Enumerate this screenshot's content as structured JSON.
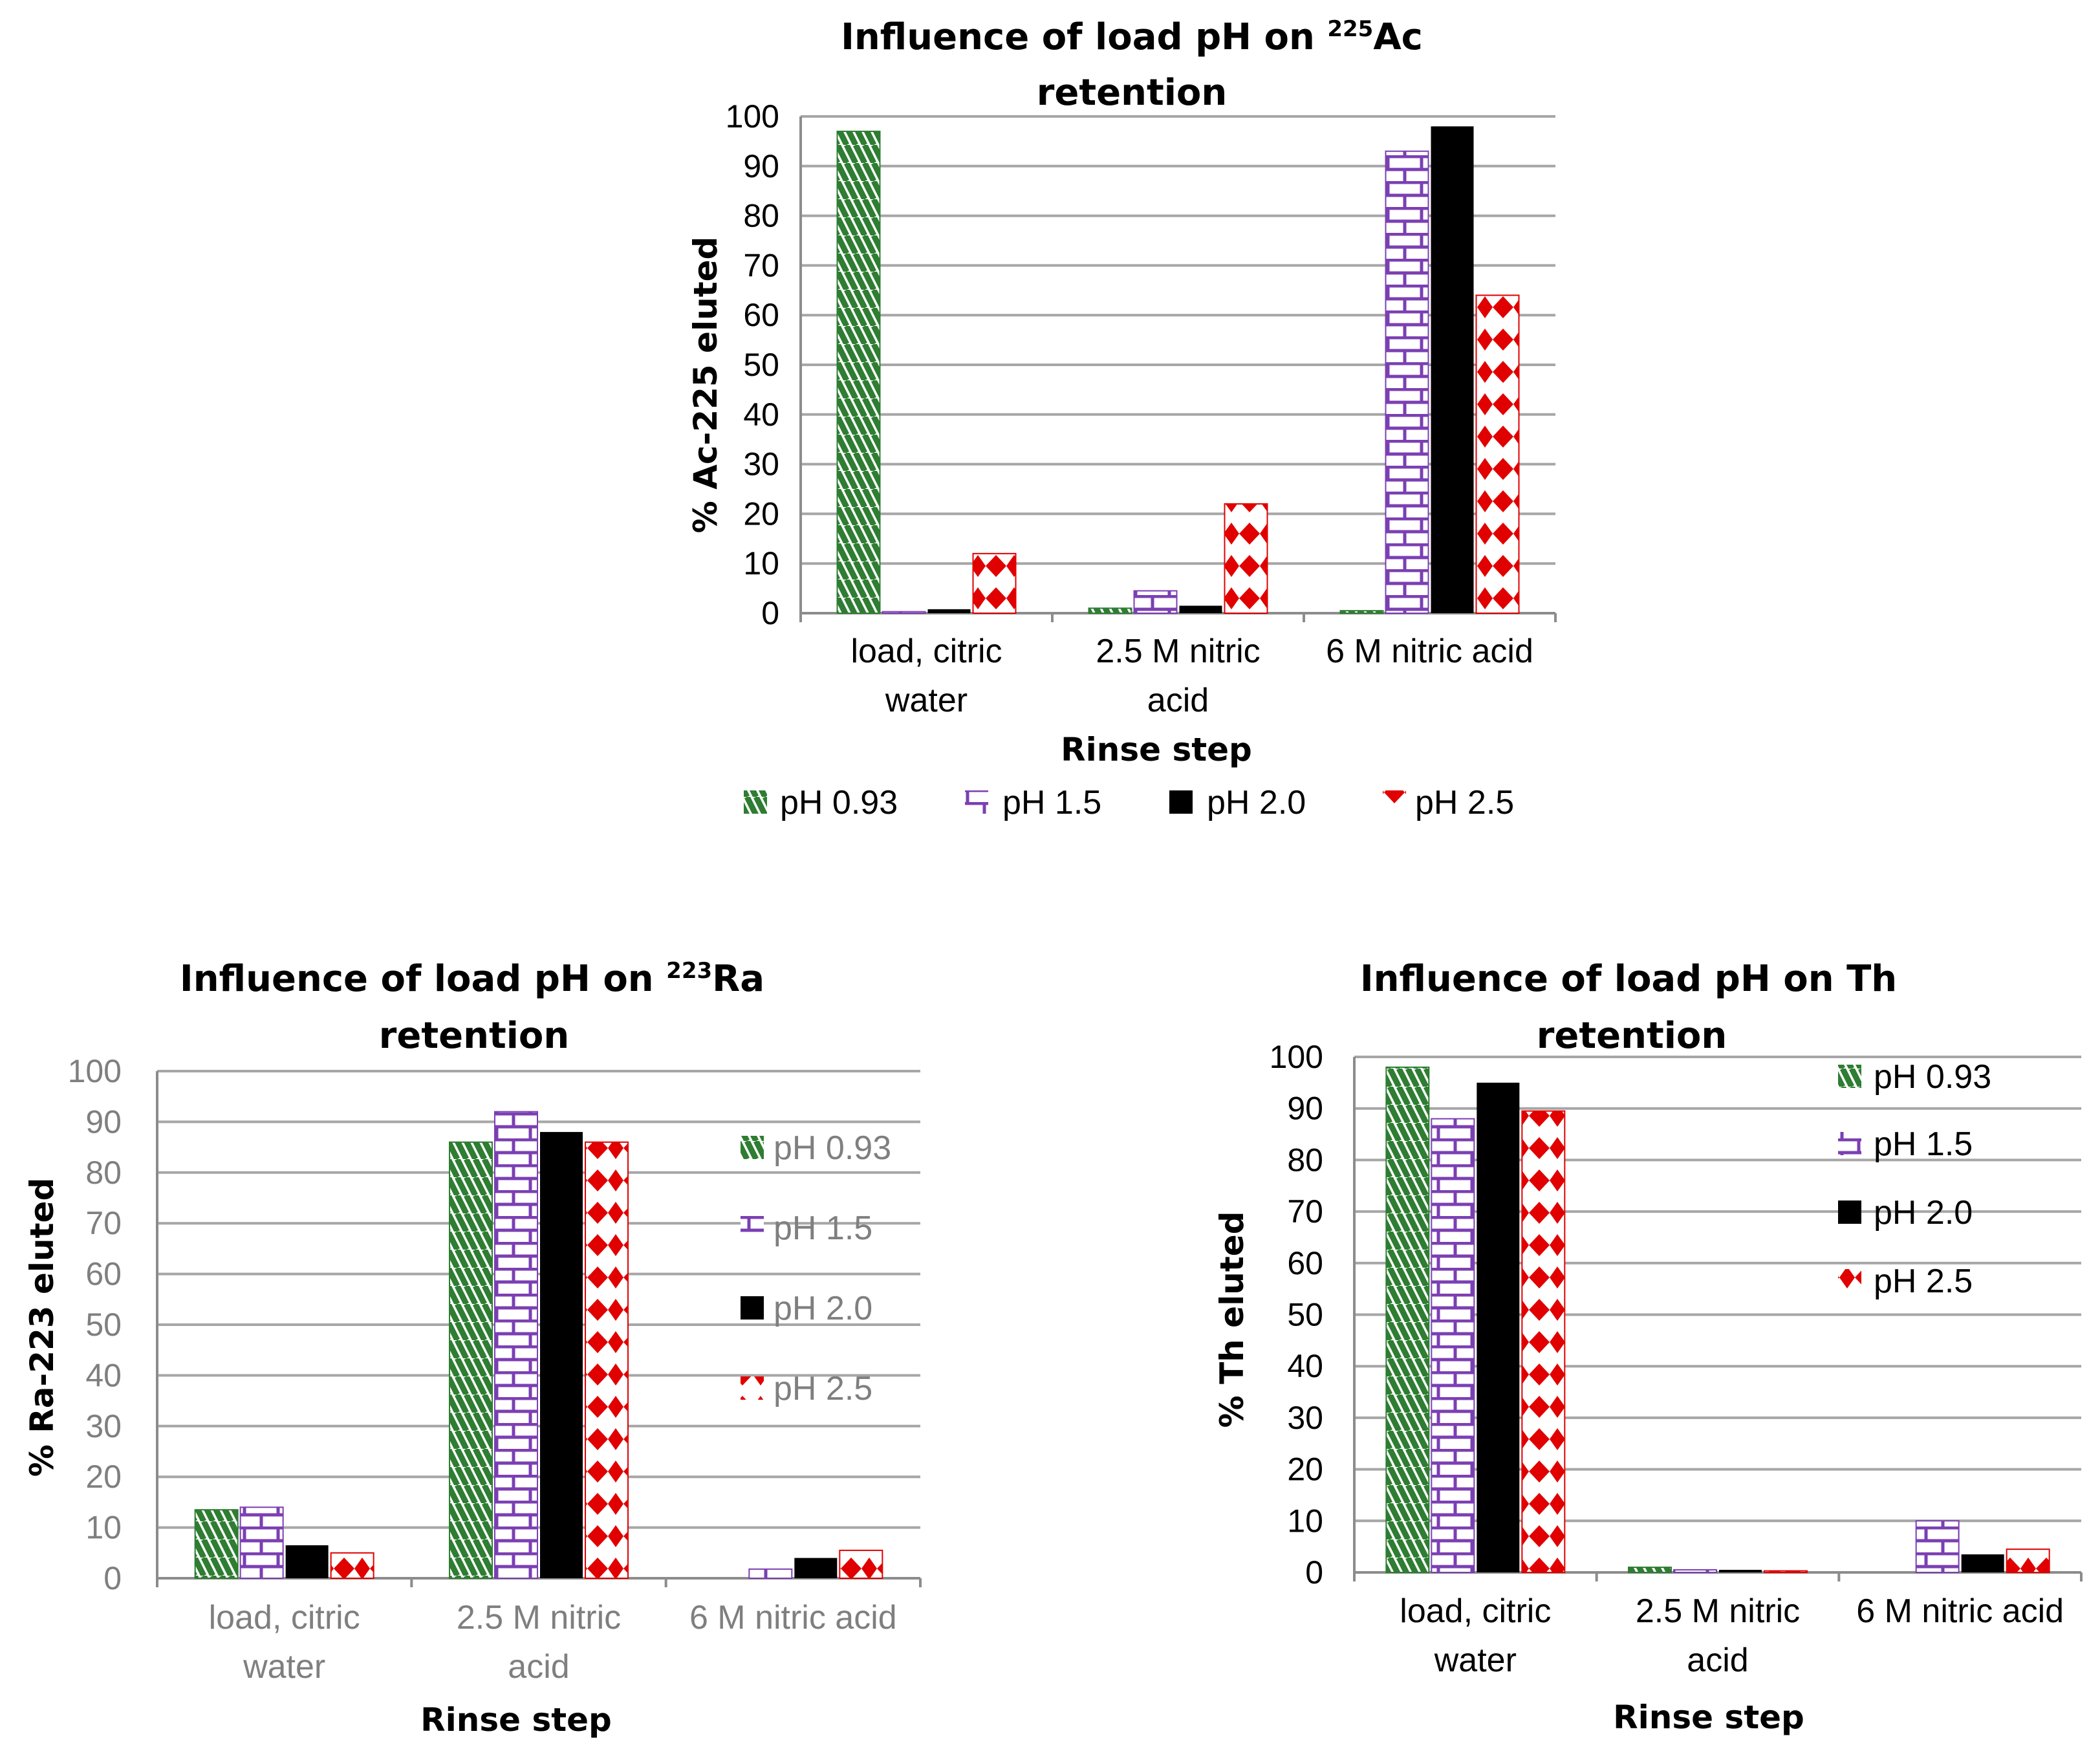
{
  "colors": {
    "ph093": "#2e7d32",
    "ph15": "#7b3fb3",
    "ph20": "#000000",
    "ph25": "#e00000",
    "gray_text": "#7f7f7f",
    "black_text": "#000000",
    "grid": "#a6a6a6"
  },
  "chart_data": [
    {
      "type": "bar",
      "title": "Influence of load pH on ",
      "title_sup": "225",
      "title_elem": "Ac",
      "title_line2": "retention",
      "ylabel": "% Ac-225 eluted",
      "xlabel": "Rinse step",
      "ylim": [
        0,
        100
      ],
      "yticks": [
        0,
        10,
        20,
        30,
        40,
        50,
        60,
        70,
        80,
        90,
        100
      ],
      "categories": [
        [
          "load, citric",
          "water"
        ],
        [
          "2.5 M nitric",
          "acid"
        ],
        [
          "6 M nitric acid"
        ]
      ],
      "legend_position": "bottom",
      "series": [
        {
          "name": "pH 0.93",
          "values": [
            97,
            1,
            0.5
          ]
        },
        {
          "name": "pH 1.5",
          "values": [
            0.3,
            4.5,
            93
          ]
        },
        {
          "name": "pH 2.0",
          "values": [
            0.8,
            1.5,
            98
          ]
        },
        {
          "name": "pH 2.5",
          "values": [
            12,
            22,
            64
          ]
        }
      ]
    },
    {
      "type": "bar",
      "title": "Influence of load pH on ",
      "title_sup": "223",
      "title_elem": "Ra",
      "title_line2": "retention",
      "ylabel": "% Ra-223 eluted",
      "xlabel": "Rinse step",
      "ylim": [
        0,
        100
      ],
      "yticks": [
        0,
        10,
        20,
        30,
        40,
        50,
        60,
        70,
        80,
        90,
        100
      ],
      "categories": [
        [
          "load, citric",
          "water"
        ],
        [
          "2.5 M nitric",
          "acid"
        ],
        [
          "6 M nitric acid"
        ]
      ],
      "legend_position": "right",
      "series": [
        {
          "name": "pH 0.93",
          "values": [
            13.5,
            86,
            0
          ]
        },
        {
          "name": "pH 1.5",
          "values": [
            14,
            92,
            1.8
          ]
        },
        {
          "name": "pH 2.0",
          "values": [
            6.5,
            88,
            4
          ]
        },
        {
          "name": "pH 2.5",
          "values": [
            5,
            86,
            5.5
          ]
        }
      ]
    },
    {
      "type": "bar",
      "title": "Influence of load pH on Th",
      "title_sup": "",
      "title_elem": "",
      "title_line2": "retention",
      "ylabel": "% Th eluted",
      "xlabel": "Rinse step",
      "ylim": [
        0,
        100
      ],
      "yticks": [
        0,
        10,
        20,
        30,
        40,
        50,
        60,
        70,
        80,
        90,
        100
      ],
      "categories": [
        [
          "load, citric",
          "water"
        ],
        [
          "2.5 M nitric",
          "acid"
        ],
        [
          "6 M nitric acid"
        ]
      ],
      "legend_position": "top-right",
      "series": [
        {
          "name": "pH 0.93",
          "values": [
            98,
            1,
            0
          ]
        },
        {
          "name": "pH 1.5",
          "values": [
            88,
            0.5,
            10
          ]
        },
        {
          "name": "pH 2.0",
          "values": [
            95,
            0.5,
            3.5
          ]
        },
        {
          "name": "pH 2.5",
          "values": [
            89.5,
            0.3,
            4.5
          ]
        }
      ]
    }
  ]
}
